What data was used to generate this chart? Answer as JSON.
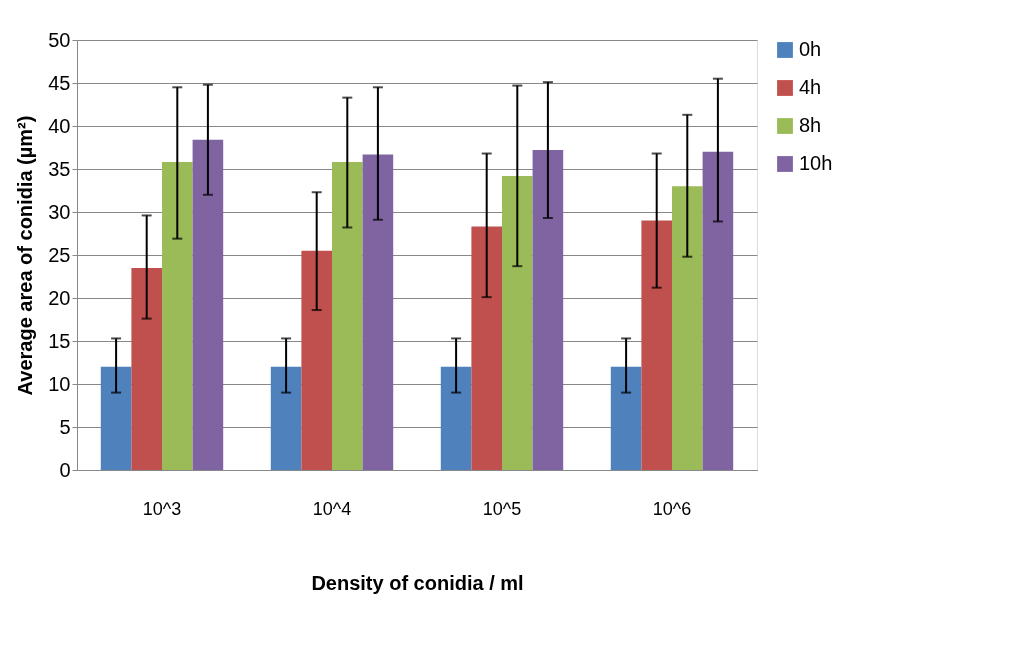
{
  "chart_data": {
    "type": "bar",
    "xlabel": "Density of conidia / ml",
    "ylabel": "Average  area of conidia (µm²)",
    "categories": [
      "10^3",
      "10^4",
      "10^5",
      "10^6"
    ],
    "series": [
      {
        "name": "0h",
        "color": "#4f81bd",
        "values": [
          12,
          12,
          12,
          12
        ],
        "errors": [
          [
            9.0,
            15.3
          ],
          [
            9.0,
            15.3
          ],
          [
            9.0,
            15.3
          ],
          [
            9.0,
            15.3
          ]
        ]
      },
      {
        "name": "4h",
        "color": "#c0504d",
        "values": [
          23.5,
          25.5,
          28.3,
          29.0
        ],
        "errors": [
          [
            17.6,
            29.6
          ],
          [
            18.6,
            32.3
          ],
          [
            20.1,
            36.8
          ],
          [
            21.2,
            36.8
          ]
        ]
      },
      {
        "name": "8h",
        "color": "#9bbb59",
        "values": [
          35.8,
          35.8,
          34.2,
          33.0
        ],
        "errors": [
          [
            26.9,
            44.5
          ],
          [
            28.2,
            43.3
          ],
          [
            23.7,
            44.7
          ],
          [
            24.8,
            41.3
          ]
        ]
      },
      {
        "name": "10h",
        "color": "#8064a2",
        "values": [
          38.4,
          36.7,
          37.2,
          37.0
        ],
        "errors": [
          [
            32.0,
            44.8
          ],
          [
            29.1,
            44.5
          ],
          [
            29.3,
            45.1
          ],
          [
            28.9,
            45.5
          ]
        ]
      }
    ],
    "ylim": [
      0,
      50
    ],
    "yticks": [
      0,
      5,
      10,
      15,
      20,
      25,
      30,
      35,
      40,
      45,
      50
    ],
    "grid": "y",
    "legend": "right"
  }
}
